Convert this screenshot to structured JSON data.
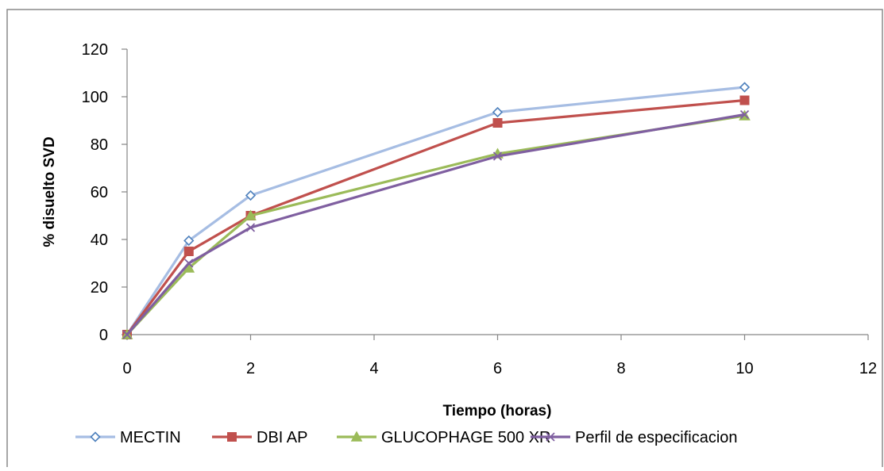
{
  "chart_data": {
    "type": "line",
    "title": "",
    "xlabel": "Tiempo (horas)",
    "ylabel": "% disuelto SVD",
    "xlim": [
      0,
      12
    ],
    "ylim": [
      0,
      120
    ],
    "x_ticks": [
      0,
      2,
      4,
      6,
      8,
      10,
      12
    ],
    "y_ticks": [
      0,
      20,
      40,
      60,
      80,
      100,
      120
    ],
    "grid": false,
    "legend_position": "bottom",
    "x": [
      0,
      1,
      2,
      6,
      10
    ],
    "series": [
      {
        "name": "MECTIN",
        "values": [
          0,
          39.5,
          58.5,
          93.5,
          104
        ],
        "color": "#a6bde3",
        "marker": "diamond"
      },
      {
        "name": "DBI AP",
        "values": [
          0,
          35,
          50,
          89,
          98.5
        ],
        "color": "#c0504d",
        "marker": "square"
      },
      {
        "name": "GLUCOPHAGE 500 XR",
        "values": [
          0,
          28,
          50,
          76,
          92
        ],
        "color": "#9bbb59",
        "marker": "triangle"
      },
      {
        "name": "Perfil de especificacion",
        "values": [
          0,
          30,
          45,
          75,
          92.5
        ],
        "color": "#7f5fa0",
        "marker": "x"
      }
    ]
  }
}
